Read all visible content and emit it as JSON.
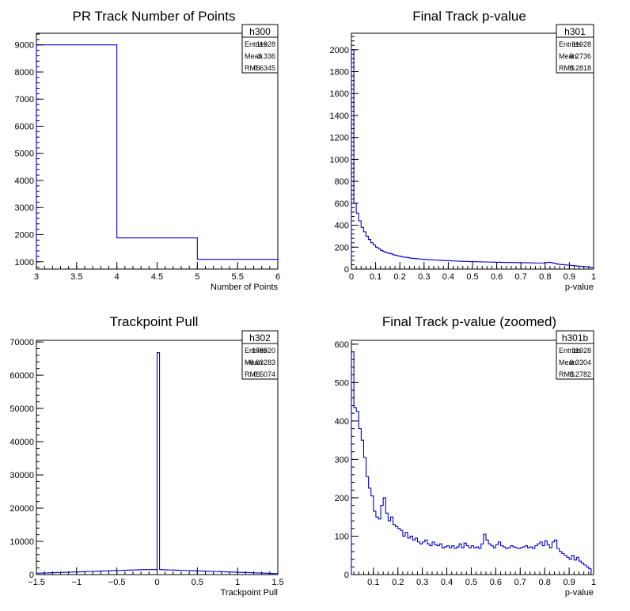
{
  "colors": {
    "histogram": "#0000cc",
    "axis": "#000000",
    "background": "#ffffff"
  },
  "chart_data": [
    {
      "id": "h300",
      "type": "histogram",
      "title": "PR Track Number of Points",
      "xlabel": "Number of Points",
      "ylabel": "",
      "xlim": [
        3,
        6
      ],
      "ylim": [
        730,
        9430
      ],
      "xticks": [
        "3",
        "3.5",
        "4",
        "4.5",
        "5",
        "5.5",
        "6"
      ],
      "yticks": [
        "1000",
        "2000",
        "3000",
        "4000",
        "5000",
        "6000",
        "7000",
        "8000",
        "9000"
      ],
      "bin_edges": [
        3,
        4,
        5,
        6
      ],
      "values": [
        9000,
        1880,
        1090
      ],
      "stats": {
        "name": "h300",
        "rows": [
          [
            "Entries",
            "11928"
          ],
          [
            "Mean",
            "3.336"
          ],
          [
            "RMS",
            "0.6345"
          ]
        ]
      }
    },
    {
      "id": "h301",
      "type": "histogram",
      "title": "Final Track p-value",
      "xlabel": "p-value",
      "ylabel": "",
      "xlim": [
        0,
        1
      ],
      "ylim": [
        0,
        2150
      ],
      "xticks": [
        "0",
        "0.1",
        "0.2",
        "0.3",
        "0.4",
        "0.5",
        "0.6",
        "0.7",
        "0.8",
        "0.9",
        "1"
      ],
      "yticks": [
        "0",
        "200",
        "400",
        "600",
        "800",
        "1000",
        "1200",
        "1400",
        "1600",
        "1800",
        "2000"
      ],
      "bin_edges_start": 0,
      "bin_width": 0.01,
      "values": [
        2000,
        600,
        510,
        440,
        380,
        340,
        300,
        270,
        240,
        220,
        200,
        185,
        170,
        160,
        150,
        145,
        140,
        130,
        125,
        120,
        115,
        110,
        108,
        105,
        100,
        98,
        96,
        94,
        92,
        90,
        88,
        86,
        85,
        84,
        83,
        82,
        80,
        79,
        78,
        77,
        76,
        75,
        74,
        73,
        72,
        71,
        70,
        70,
        69,
        68,
        68,
        67,
        66,
        66,
        65,
        65,
        64,
        64,
        63,
        63,
        62,
        62,
        61,
        61,
        60,
        60,
        60,
        59,
        59,
        58,
        58,
        58,
        57,
        57,
        57,
        56,
        56,
        56,
        55,
        55,
        58,
        62,
        60,
        55,
        50,
        45,
        42,
        40,
        38,
        36,
        34,
        32,
        30,
        28,
        26,
        24,
        22,
        20,
        18,
        15
      ],
      "stats": {
        "name": "h301",
        "rows": [
          [
            "Entries",
            "11928"
          ],
          [
            "Mean",
            "0.2736"
          ],
          [
            "RMS",
            "0.2818"
          ]
        ]
      }
    },
    {
      "id": "h302",
      "type": "histogram",
      "title": "Trackpoint Pull",
      "xlabel": "Trackpoint Pull",
      "ylabel": "",
      "xlim": [
        -1.5,
        1.5
      ],
      "ylim": [
        0,
        70500
      ],
      "xticks": [
        "−1.5",
        "−1",
        "−0.5",
        "0",
        "0.5",
        "1",
        "1.5"
      ],
      "yticks": [
        "0",
        "10000",
        "20000",
        "30000",
        "40000",
        "50000",
        "60000",
        "70000"
      ],
      "bin_edges_start": -1.5,
      "bin_width": 0.03,
      "values": [
        400,
        420,
        450,
        480,
        500,
        520,
        550,
        580,
        600,
        620,
        650,
        680,
        700,
        720,
        750,
        780,
        800,
        820,
        850,
        880,
        900,
        920,
        950,
        980,
        1000,
        1020,
        1050,
        1080,
        1100,
        1120,
        1150,
        1180,
        1200,
        1220,
        1250,
        1280,
        1300,
        1320,
        1350,
        1380,
        1400,
        1420,
        1450,
        1480,
        1500,
        1500,
        1500,
        1500,
        1500,
        1500,
        66800,
        1500,
        1480,
        1450,
        1420,
        1400,
        1380,
        1350,
        1320,
        1300,
        1280,
        1250,
        1220,
        1200,
        1180,
        1150,
        1120,
        1100,
        1080,
        1050,
        1020,
        1000,
        980,
        950,
        920,
        900,
        880,
        850,
        820,
        800,
        780,
        750,
        720,
        700,
        680,
        650,
        620,
        600,
        580,
        550,
        520,
        500,
        480,
        450,
        420,
        400,
        380,
        350,
        320,
        300
      ],
      "stats": {
        "name": "h302",
        "rows": [
          [
            "Entries",
            "178920"
          ],
          [
            "Mean",
            "−0.03283"
          ],
          [
            "RMS",
            "0.5074"
          ]
        ]
      }
    },
    {
      "id": "h301b",
      "type": "histogram",
      "title": "Final Track p-value (zoomed)",
      "xlabel": "p-value",
      "ylabel": "",
      "xlim": [
        0.01,
        1
      ],
      "ylim": [
        0,
        610
      ],
      "xticks": [
        "0.1",
        "0.2",
        "0.3",
        "0.4",
        "0.5",
        "0.6",
        "0.7",
        "0.8",
        "0.9",
        "1"
      ],
      "yticks": [
        "0",
        "100",
        "200",
        "300",
        "400",
        "500",
        "600"
      ],
      "bin_edges_start": 0.01,
      "bin_width": 0.01,
      "values": [
        580,
        435,
        425,
        380,
        350,
        305,
        255,
        225,
        205,
        165,
        150,
        145,
        180,
        200,
        160,
        140,
        150,
        130,
        125,
        120,
        115,
        100,
        110,
        95,
        100,
        90,
        95,
        85,
        80,
        85,
        90,
        80,
        75,
        85,
        78,
        75,
        80,
        70,
        72,
        75,
        70,
        75,
        68,
        72,
        80,
        70,
        82,
        75,
        70,
        75,
        70,
        72,
        68,
        80,
        105,
        90,
        80,
        75,
        70,
        78,
        85,
        75,
        72,
        68,
        70,
        75,
        72,
        70,
        68,
        70,
        72,
        75,
        70,
        72,
        68,
        75,
        80,
        85,
        75,
        88,
        78,
        70,
        85,
        90,
        68,
        60,
        55,
        50,
        45,
        40,
        50,
        38,
        45,
        35,
        30,
        25,
        20,
        15
      ],
      "stats": {
        "name": "h301b",
        "rows": [
          [
            "Entries",
            "11928"
          ],
          [
            "Mean",
            "0.3304"
          ],
          [
            "RMS",
            "0.2782"
          ]
        ]
      }
    }
  ]
}
